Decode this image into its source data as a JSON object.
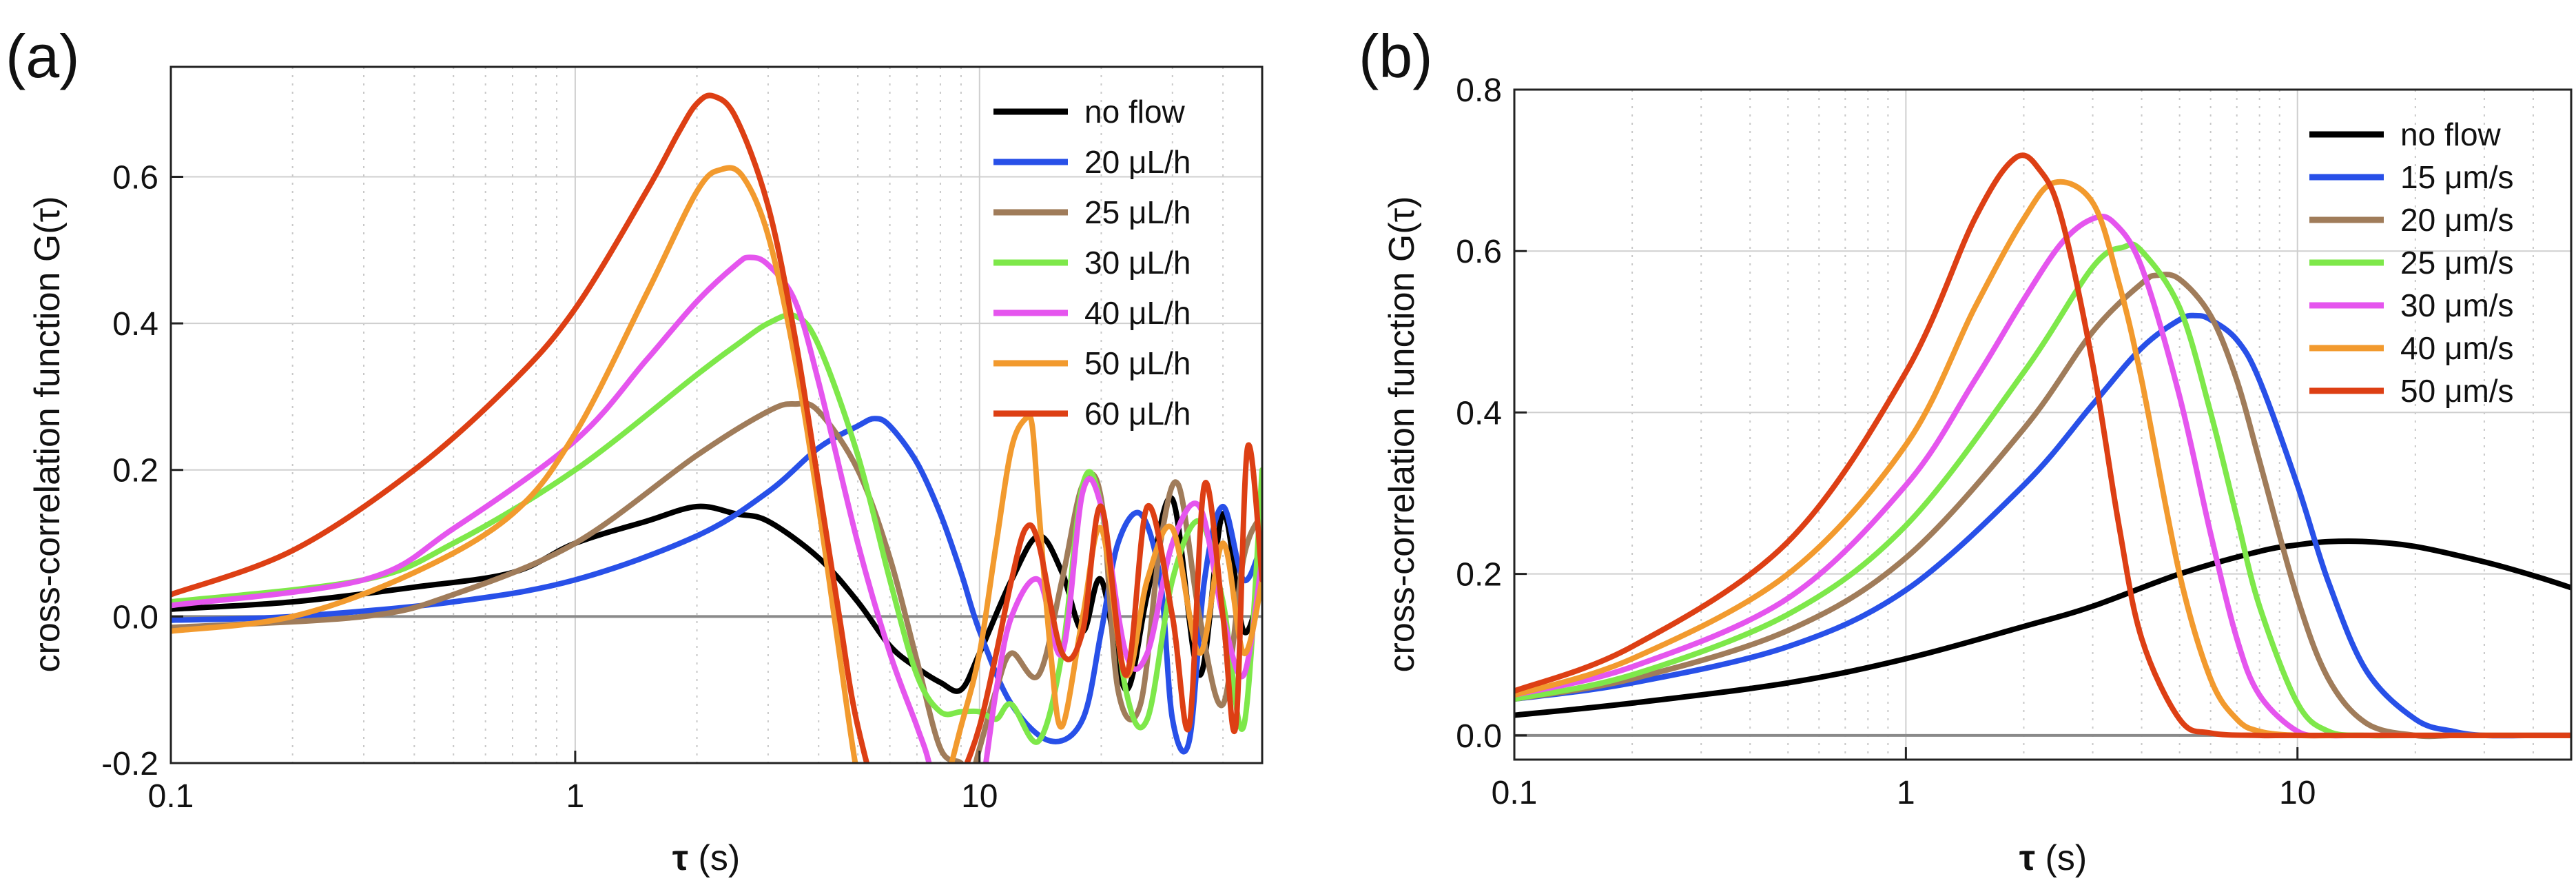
{
  "panels": [
    {
      "panel_label": "(a)",
      "ylabel": "cross-correlation function G(τ)",
      "xlabel_sym": "τ",
      "xlabel_unit": " (s)"
    },
    {
      "panel_label": "(b)",
      "ylabel": "cross-correlation function G(τ)",
      "xlabel_sym": "τ",
      "xlabel_unit": " (s)"
    }
  ],
  "chart_data": [
    {
      "type": "line",
      "xscale": "log",
      "xlim": [
        0.1,
        50
      ],
      "ylim": [
        -0.2,
        0.75
      ],
      "xticks": [
        0.1,
        1,
        10
      ],
      "xtick_labels": [
        "0.1",
        "1",
        "10"
      ],
      "yticks": [
        -0.2,
        0.0,
        0.2,
        0.4,
        0.6
      ],
      "ytick_labels": [
        "-0.2",
        "0.0",
        "0.2",
        "0.4",
        "0.6"
      ],
      "grid": true,
      "legend_position": "top-right",
      "series": [
        {
          "name": "no flow",
          "color": "#000000",
          "x": [
            0.1,
            0.2,
            0.4,
            0.7,
            1.0,
            1.5,
            2.0,
            2.5,
            3.0,
            4.0,
            5.0,
            6.0,
            7.0,
            8.0,
            9.0,
            10.0,
            12.0,
            14.0,
            16.0,
            18.0,
            20.0,
            23.0,
            26.0,
            30.0,
            35.0,
            40.0,
            45.0,
            50.0
          ],
          "y": [
            0.01,
            0.02,
            0.04,
            0.06,
            0.1,
            0.13,
            0.15,
            0.14,
            0.13,
            0.08,
            0.02,
            -0.04,
            -0.07,
            -0.09,
            -0.1,
            -0.05,
            0.05,
            0.11,
            0.06,
            -0.02,
            0.05,
            -0.1,
            0.03,
            0.16,
            -0.08,
            0.14,
            -0.02,
            0.05
          ]
        },
        {
          "name": "20 μL/h",
          "color": "#2850e8",
          "x": [
            0.1,
            0.2,
            0.5,
            1.0,
            2.0,
            3.0,
            4.0,
            5.0,
            5.5,
            6.0,
            7.0,
            8.0,
            9.0,
            10.0,
            12.0,
            15.0,
            18.0,
            20.0,
            22.0,
            25.0,
            28.0,
            30.0,
            33.0,
            36.0,
            40.0,
            45.0,
            50.0
          ],
          "y": [
            -0.005,
            0.0,
            0.02,
            0.05,
            0.11,
            0.17,
            0.23,
            0.26,
            0.27,
            0.26,
            0.21,
            0.14,
            0.06,
            -0.02,
            -0.12,
            -0.17,
            -0.14,
            -0.02,
            0.1,
            0.14,
            0.05,
            -0.14,
            -0.17,
            0.05,
            0.15,
            0.05,
            0.1
          ]
        },
        {
          "name": "25 μL/h",
          "color": "#a07c5a",
          "x": [
            0.1,
            0.3,
            0.5,
            1.0,
            2.0,
            3.0,
            3.5,
            4.0,
            5.0,
            6.0,
            7.0,
            8.0,
            9.0,
            9.5,
            10.0,
            11.0,
            12.0,
            14.0,
            16.0,
            18.0,
            20.0,
            22.0,
            25.0,
            28.0,
            31.0,
            35.0,
            40.0,
            45.0,
            50.0
          ],
          "y": [
            -0.015,
            0.0,
            0.03,
            0.1,
            0.22,
            0.28,
            0.29,
            0.28,
            0.2,
            0.08,
            -0.06,
            -0.18,
            -0.2,
            -0.22,
            -0.18,
            -0.1,
            -0.05,
            -0.08,
            0.05,
            0.18,
            0.16,
            -0.1,
            -0.12,
            0.1,
            0.18,
            0.0,
            -0.12,
            0.08,
            0.14
          ]
        },
        {
          "name": "30 μL/h",
          "color": "#7ee84a",
          "x": [
            0.1,
            0.3,
            0.5,
            1.0,
            2.0,
            2.5,
            3.0,
            3.5,
            4.0,
            5.0,
            6.0,
            7.0,
            8.0,
            9.0,
            10.0,
            11.0,
            12.0,
            14.0,
            16.0,
            18.0,
            20.0,
            23.0,
            26.0,
            30.0,
            35.0,
            40.0,
            45.0,
            50.0
          ],
          "y": [
            0.02,
            0.05,
            0.1,
            0.2,
            0.33,
            0.37,
            0.4,
            0.41,
            0.37,
            0.22,
            0.05,
            -0.08,
            -0.13,
            -0.13,
            -0.13,
            -0.14,
            -0.12,
            -0.17,
            -0.05,
            0.18,
            0.15,
            -0.1,
            -0.14,
            0.05,
            0.13,
            0.02,
            -0.15,
            0.2
          ]
        },
        {
          "name": "40 μL/h",
          "color": "#e555ee",
          "x": [
            0.1,
            0.3,
            0.5,
            1.0,
            1.5,
            2.0,
            2.5,
            2.7,
            3.0,
            3.5,
            4.0,
            5.0,
            6.0,
            7.0,
            7.5,
            8.0,
            8.5,
            9.0,
            10.0,
            11.0,
            12.0,
            14.0,
            16.0,
            18.0,
            20.0,
            23.0,
            26.0,
            30.0,
            35.0,
            40.0,
            45.0,
            50.0
          ],
          "y": [
            0.015,
            0.05,
            0.12,
            0.24,
            0.35,
            0.43,
            0.48,
            0.49,
            0.48,
            0.43,
            0.32,
            0.1,
            -0.05,
            -0.15,
            -0.2,
            -0.28,
            -0.3,
            -0.3,
            -0.25,
            -0.1,
            0.0,
            0.05,
            -0.05,
            0.17,
            0.15,
            -0.05,
            -0.05,
            0.1,
            0.15,
            0.0,
            -0.08,
            0.08
          ]
        },
        {
          "name": "50 μL/h",
          "color": "#f29a2e",
          "x": [
            0.1,
            0.2,
            0.4,
            0.7,
            1.0,
            1.5,
            2.0,
            2.3,
            2.6,
            3.0,
            3.5,
            4.0,
            4.5,
            5.0,
            5.5,
            6.0,
            7.0,
            8.0,
            9.0,
            10.0,
            11.0,
            12.0,
            13.0,
            13.5,
            14.0,
            15.0,
            16.0,
            18.0,
            20.0,
            23.0,
            26.0,
            30.0,
            35.0,
            40.0,
            45.0,
            50.0
          ],
          "y": [
            -0.02,
            0.0,
            0.06,
            0.14,
            0.25,
            0.44,
            0.58,
            0.61,
            0.6,
            0.52,
            0.35,
            0.15,
            -0.05,
            -0.22,
            -0.3,
            -0.32,
            -0.3,
            -0.25,
            -0.15,
            -0.05,
            0.1,
            0.23,
            0.27,
            0.26,
            0.15,
            -0.05,
            -0.15,
            0.0,
            0.12,
            -0.08,
            0.05,
            0.12,
            -0.05,
            0.1,
            -0.05,
            0.05
          ]
        },
        {
          "name": "60 μL/h",
          "color": "#dd3f14",
          "x": [
            0.1,
            0.2,
            0.4,
            0.7,
            1.0,
            1.5,
            1.8,
            2.0,
            2.2,
            2.5,
            3.0,
            3.5,
            4.0,
            4.5,
            5.0,
            6.0,
            7.0,
            8.0,
            9.0,
            10.0,
            11.0,
            12.0,
            13.0,
            14.0,
            16.0,
            18.0,
            20.0,
            23.0,
            26.0,
            30.0,
            33.0,
            36.0,
            40.0,
            43.0,
            46.0,
            50.0
          ],
          "y": [
            0.03,
            0.09,
            0.2,
            0.32,
            0.42,
            0.58,
            0.66,
            0.7,
            0.71,
            0.68,
            0.56,
            0.38,
            0.18,
            0.0,
            -0.15,
            -0.3,
            -0.32,
            -0.28,
            -0.22,
            -0.15,
            -0.05,
            0.05,
            0.12,
            0.1,
            -0.05,
            -0.02,
            0.15,
            -0.08,
            0.15,
            0.0,
            -0.15,
            0.18,
            0.0,
            -0.15,
            0.23,
            0.05
          ]
        }
      ]
    },
    {
      "type": "line",
      "xscale": "log",
      "xlim": [
        0.1,
        50
      ],
      "ylim": [
        -0.03,
        0.8
      ],
      "xticks": [
        0.1,
        1,
        10
      ],
      "xtick_labels": [
        "0.1",
        "1",
        "10"
      ],
      "yticks": [
        0.0,
        0.2,
        0.4,
        0.6,
        0.8
      ],
      "ytick_labels": [
        "0.0",
        "0.2",
        "0.4",
        "0.6",
        "0.8"
      ],
      "grid": true,
      "legend_position": "top-right",
      "series": [
        {
          "name": "no flow",
          "color": "#000000",
          "x": [
            0.1,
            0.2,
            0.5,
            1.0,
            2.0,
            3.0,
            5.0,
            8.0,
            10.0,
            12.0,
            15.0,
            20.0,
            30.0,
            40.0,
            50.0
          ],
          "y": [
            0.025,
            0.04,
            0.065,
            0.095,
            0.135,
            0.16,
            0.2,
            0.228,
            0.236,
            0.24,
            0.24,
            0.234,
            0.215,
            0.198,
            0.183
          ]
        },
        {
          "name": "15 μm/s",
          "color": "#2850e8",
          "x": [
            0.1,
            0.2,
            0.5,
            1.0,
            2.0,
            3.0,
            4.0,
            5.0,
            5.5,
            6.0,
            7.0,
            8.0,
            10.0,
            12.0,
            15.0,
            20.0,
            25.0,
            30.0,
            40.0,
            50.0
          ],
          "y": [
            0.045,
            0.065,
            0.11,
            0.18,
            0.31,
            0.41,
            0.48,
            0.515,
            0.52,
            0.515,
            0.49,
            0.44,
            0.31,
            0.19,
            0.08,
            0.02,
            0.005,
            0.0,
            0.0,
            0.0
          ]
        },
        {
          "name": "20 μm/s",
          "color": "#a07c5a",
          "x": [
            0.1,
            0.2,
            0.5,
            1.0,
            2.0,
            3.0,
            4.0,
            4.4,
            5.0,
            6.0,
            7.0,
            8.0,
            10.0,
            12.0,
            15.0,
            20.0,
            25.0,
            30.0,
            50.0
          ],
          "y": [
            0.045,
            0.07,
            0.13,
            0.22,
            0.38,
            0.5,
            0.56,
            0.57,
            0.565,
            0.52,
            0.44,
            0.34,
            0.17,
            0.07,
            0.015,
            0.0,
            0.0,
            0.0,
            0.0
          ]
        },
        {
          "name": "25 μm/s",
          "color": "#7ee84a",
          "x": [
            0.1,
            0.2,
            0.5,
            1.0,
            2.0,
            3.0,
            3.6,
            4.0,
            5.0,
            6.0,
            7.0,
            8.0,
            10.0,
            12.0,
            15.0,
            20.0,
            50.0
          ],
          "y": [
            0.045,
            0.075,
            0.15,
            0.26,
            0.45,
            0.58,
            0.605,
            0.6,
            0.53,
            0.4,
            0.27,
            0.16,
            0.04,
            0.005,
            0.0,
            0.0,
            0.0
          ]
        },
        {
          "name": "30 μm/s",
          "color": "#e555ee",
          "x": [
            0.1,
            0.2,
            0.5,
            1.0,
            1.5,
            2.0,
            2.5,
            3.0,
            3.4,
            4.0,
            5.0,
            6.0,
            7.0,
            8.0,
            10.0,
            12.0,
            15.0,
            50.0
          ],
          "y": [
            0.05,
            0.085,
            0.17,
            0.31,
            0.44,
            0.54,
            0.61,
            0.64,
            0.635,
            0.58,
            0.42,
            0.25,
            0.12,
            0.05,
            0.005,
            0.0,
            0.0,
            0.0
          ]
        },
        {
          "name": "40 μm/s",
          "color": "#f29a2e",
          "x": [
            0.1,
            0.2,
            0.5,
            1.0,
            1.5,
            2.0,
            2.4,
            3.0,
            3.5,
            4.0,
            5.0,
            6.0,
            7.0,
            8.0,
            10.0,
            15.0,
            50.0
          ],
          "y": [
            0.05,
            0.095,
            0.2,
            0.36,
            0.53,
            0.64,
            0.685,
            0.66,
            0.56,
            0.44,
            0.2,
            0.07,
            0.02,
            0.005,
            0.0,
            0.0,
            0.0
          ]
        },
        {
          "name": "50 μm/s",
          "color": "#dd3f14",
          "x": [
            0.1,
            0.2,
            0.5,
            1.0,
            1.5,
            1.9,
            2.2,
            2.5,
            3.0,
            3.5,
            4.0,
            5.0,
            6.0,
            8.0,
            10.0,
            50.0
          ],
          "y": [
            0.055,
            0.11,
            0.24,
            0.45,
            0.64,
            0.715,
            0.7,
            0.64,
            0.46,
            0.26,
            0.12,
            0.02,
            0.003,
            0.0,
            0.0,
            0.0
          ]
        }
      ]
    }
  ]
}
